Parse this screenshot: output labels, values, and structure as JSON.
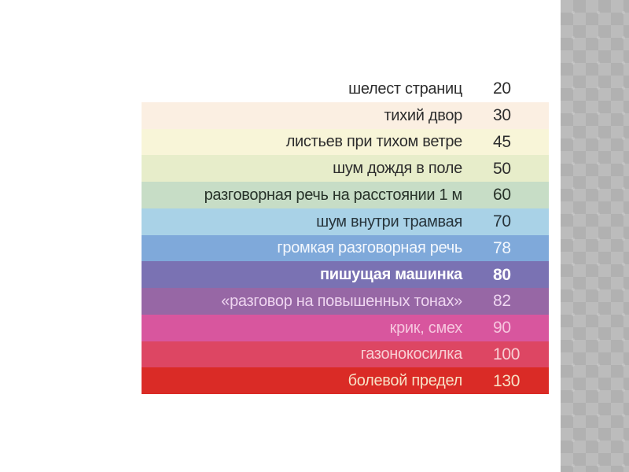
{
  "slide": {
    "background": "#ffffff",
    "sidebar": {
      "base_color": "#bcbcbc",
      "diamond_color": "#b1b1b1"
    },
    "table": {
      "rows": [
        {
          "label": "шелест страниц",
          "value": "20",
          "bg": "#ffffff",
          "fg": "#2d2d2d",
          "bold": false
        },
        {
          "label": "тихий двор",
          "value": "30",
          "bg": "#fbefe2",
          "fg": "#2d2d2d",
          "bold": false
        },
        {
          "label": "листьев при тихом ветре",
          "value": "45",
          "bg": "#f8f5d8",
          "fg": "#2d2d2d",
          "bold": false
        },
        {
          "label": "шум дождя в поле",
          "value": "50",
          "bg": "#e7edca",
          "fg": "#2d2d2d",
          "bold": false
        },
        {
          "label": "разговорная речь на расстоянии 1 м",
          "value": "60",
          "bg": "#c7ddc6",
          "fg": "#273229",
          "bold": false
        },
        {
          "label": "шум внутри трамвая",
          "value": "70",
          "bg": "#a9d2e7",
          "fg": "#27343b",
          "bold": false
        },
        {
          "label": "громкая разговорная речь",
          "value": "78",
          "bg": "#7fa9da",
          "fg": "#f3f7fd",
          "bold": false
        },
        {
          "label": "пишущая машинка",
          "value": "80",
          "bg": "#7a72b3",
          "fg": "#ffffff",
          "bold": true
        },
        {
          "label": "«разговор на повышенных тонах»",
          "value": "82",
          "bg": "#9767a5",
          "fg": "#eed5f0",
          "bold": false
        },
        {
          "label": "крик, смех",
          "value": "90",
          "bg": "#d8569e",
          "fg": "#f6c6de",
          "bold": false
        },
        {
          "label": "газонокосилка",
          "value": "100",
          "bg": "#dd4663",
          "fg": "#f8ced3",
          "bold": false
        },
        {
          "label": "болевой предел",
          "value": "130",
          "bg": "#da2b26",
          "fg": "#f7e0c5",
          "bold": false
        }
      ]
    }
  },
  "chart_data": {
    "type": "table",
    "title": "",
    "categories": [
      "шелест страниц",
      "тихий двор",
      "листьев при тихом ветре",
      "шум дождя в поле",
      "разговорная речь на расстоянии 1 м",
      "шум внутри трамвая",
      "громкая разговорная речь",
      "пишущая машинка",
      "«разговор на повышенных тонах»",
      "крик, смех",
      "газонокосилка",
      "болевой предел"
    ],
    "values": [
      20,
      30,
      45,
      50,
      60,
      70,
      78,
      80,
      82,
      90,
      100,
      130
    ]
  }
}
